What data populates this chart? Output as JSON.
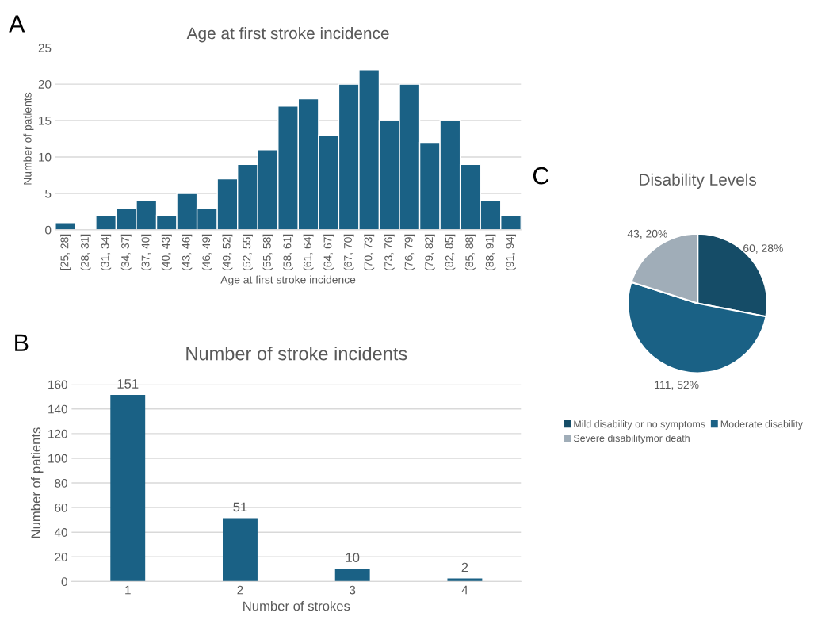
{
  "chart_data": [
    {
      "type": "bar",
      "title": "Age at first stroke incidence",
      "xlabel": "Age at first stroke incidence",
      "ylabel": "Number of patients",
      "annotations": [
        "A"
      ],
      "categories": [
        "[25, 28]",
        "(28, 31]",
        "(31, 34]",
        "(34, 37]",
        "(37, 40]",
        "(40, 43]",
        "(43, 46]",
        "(46, 49]",
        "(49, 52]",
        "(52, 55]",
        "(55, 58]",
        "(58, 61]",
        "(61, 64]",
        "(64, 67]",
        "(67, 70]",
        "(70, 73]",
        "(73, 76]",
        "(76, 79]",
        "(79, 82]",
        "(82, 85]",
        "(85, 88]",
        "(88, 91]",
        "(91, 94]"
      ],
      "values": [
        1,
        0,
        2,
        3,
        4,
        2,
        5,
        3,
        7,
        9,
        11,
        17,
        18,
        13,
        20,
        22,
        15,
        20,
        12,
        15,
        9,
        4,
        2
      ],
      "color": "#1a6185",
      "ylim": [
        0,
        25
      ],
      "yticks": [
        0,
        5,
        10,
        15,
        20,
        25
      ],
      "grid": "y"
    },
    {
      "type": "bar",
      "title": "Number of stroke incidents",
      "xlabel": "Number of strokes",
      "ylabel": "Number of patients",
      "annotations": [
        "B"
      ],
      "categories": [
        "1",
        "2",
        "3",
        "4"
      ],
      "values": [
        151,
        51,
        10,
        2
      ],
      "color": "#1a6185",
      "ylim": [
        0,
        160
      ],
      "yticks": [
        0,
        20,
        40,
        60,
        80,
        100,
        120,
        140,
        160
      ],
      "grid": "y",
      "data_labels": true
    },
    {
      "type": "pie",
      "title": "Disability Levels",
      "annotations": [
        "C"
      ],
      "legend": "bottom",
      "categories": [
        "Mild disability or no symptoms",
        "Moderate disability",
        "Severe disabilitymor death"
      ],
      "values": [
        60,
        111,
        43
      ],
      "colors": [
        "#154c67",
        "#1a6185",
        "#a0adb8"
      ],
      "value_labels": [
        "60, 28%",
        "111, 52%",
        "43, 20%"
      ]
    }
  ]
}
